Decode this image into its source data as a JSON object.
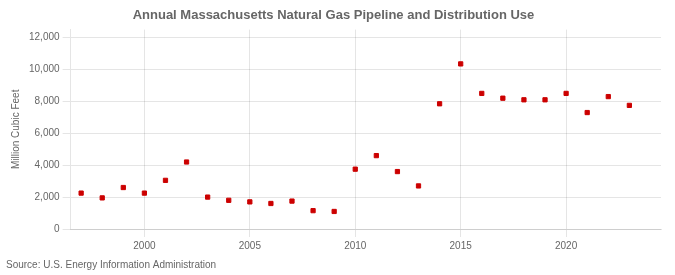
{
  "chart_data": {
    "type": "scatter",
    "title": "Annual Massachusetts Natural Gas Pipeline and Distribution Use",
    "ylabel": "Million Cubic Feet",
    "annotations": [
      "Source: U.S. Energy Information Administration"
    ],
    "x": [
      1997,
      1998,
      1999,
      2000,
      2001,
      2002,
      2003,
      2004,
      2005,
      2006,
      2007,
      2008,
      2009,
      2010,
      2011,
      2012,
      2013,
      2014,
      2015,
      2016,
      2017,
      2018,
      2019,
      2020,
      2021,
      2022,
      2023
    ],
    "values": [
      2250,
      1950,
      2600,
      2250,
      3050,
      4200,
      2000,
      1800,
      1700,
      1600,
      1750,
      1150,
      1100,
      3750,
      4600,
      3600,
      2700,
      7850,
      10350,
      8500,
      8200,
      8100,
      8100,
      8500,
      7300,
      8300,
      7750
    ],
    "color": "#cc0000",
    "marker": "square",
    "xlim": [
      1996.5,
      2024.5
    ],
    "xticks": [
      2000,
      2005,
      2010,
      2015,
      2020
    ],
    "ylim": [
      0,
      12500
    ],
    "yticks": [
      0,
      {
        "value": 2000,
        "label": "2,000"
      },
      {
        "value": 4000,
        "label": "4,000"
      },
      {
        "value": 6000,
        "label": "6,000"
      },
      {
        "value": 8000,
        "label": "8,000"
      },
      {
        "value": 10000,
        "label": "10,000"
      },
      {
        "value": 12000,
        "label": "12,000"
      }
    ],
    "grid": true
  }
}
